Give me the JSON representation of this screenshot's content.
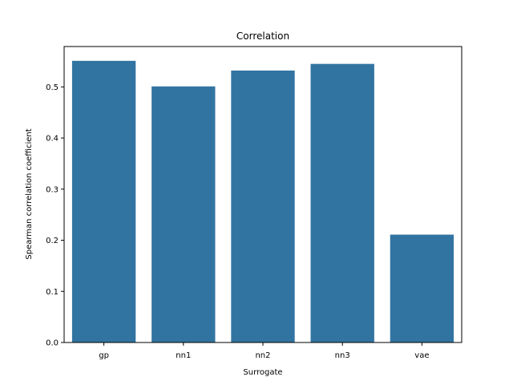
{
  "chart_data": {
    "type": "bar",
    "title": "Correlation",
    "xlabel": "Surrogate",
    "ylabel": "Spearman correlation coefficient",
    "categories": [
      "gp",
      "nn1",
      "nn2",
      "nn3",
      "vae"
    ],
    "values": [
      0.551,
      0.501,
      0.532,
      0.545,
      0.211
    ],
    "ylim": [
      0,
      0.579
    ],
    "yticks": [
      0.0,
      0.1,
      0.2,
      0.3,
      0.4,
      0.5
    ],
    "ytick_labels": [
      "0.0",
      "0.1",
      "0.2",
      "0.3",
      "0.4",
      "0.5"
    ],
    "bar_color": "#3274a1",
    "grid": false,
    "legend": "none"
  }
}
